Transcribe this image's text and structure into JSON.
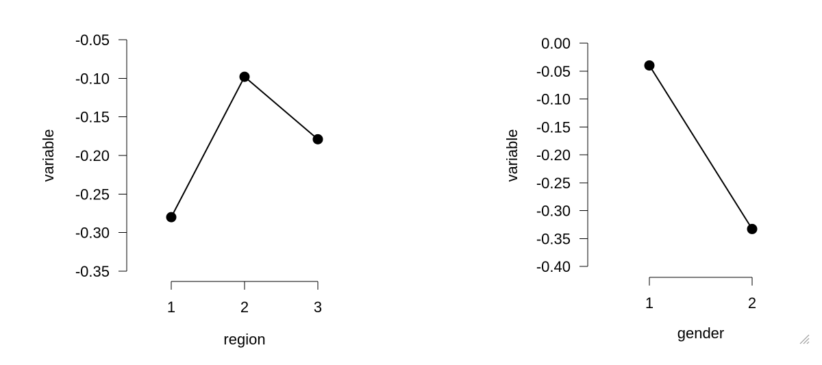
{
  "chart_data": [
    {
      "type": "line",
      "xlabel": "region",
      "ylabel": "variable",
      "categories": [
        "1",
        "2",
        "3"
      ],
      "values": [
        -0.28,
        -0.098,
        -0.179
      ],
      "ylim": [
        -0.35,
        -0.05
      ],
      "yticks": [
        "-0.05",
        "-0.10",
        "-0.15",
        "-0.20",
        "-0.25",
        "-0.30",
        "-0.35"
      ],
      "grid": false
    },
    {
      "type": "line",
      "xlabel": "gender",
      "ylabel": "variable",
      "categories": [
        "1",
        "2"
      ],
      "values": [
        -0.04,
        -0.333
      ],
      "ylim": [
        -0.4,
        0.0
      ],
      "yticks": [
        "0.00",
        "-0.05",
        "-0.10",
        "-0.15",
        "-0.20",
        "-0.25",
        "-0.30",
        "-0.35",
        "-0.40"
      ],
      "grid": false
    }
  ],
  "window": {
    "resize_grip_icon": "resize-grip-icon"
  }
}
